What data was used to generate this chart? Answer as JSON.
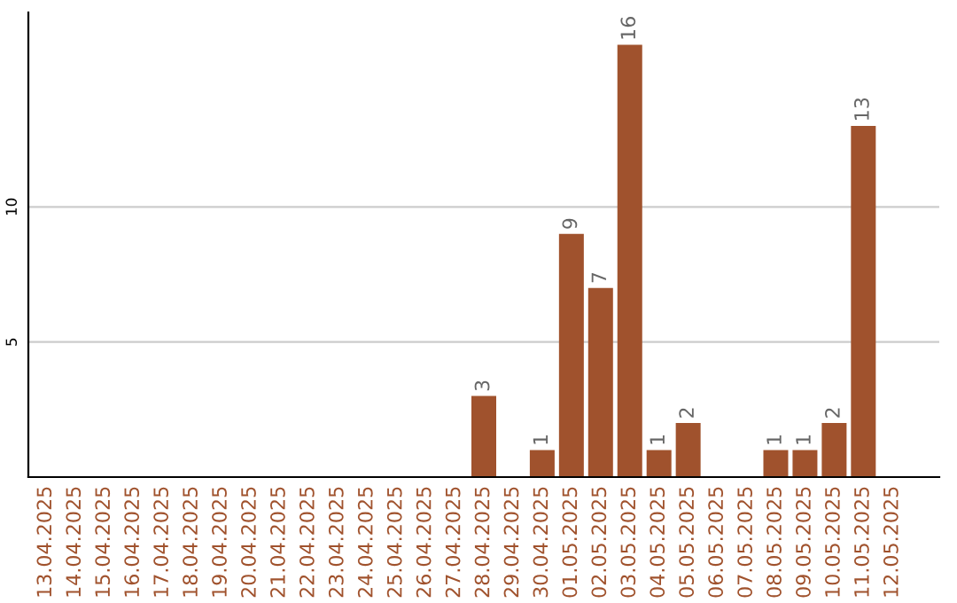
{
  "chart_data": {
    "type": "bar",
    "categories": [
      "13.04.2025",
      "14.04.2025",
      "15.04.2025",
      "16.04.2025",
      "17.04.2025",
      "18.04.2025",
      "19.04.2025",
      "20.04.2025",
      "21.04.2025",
      "22.04.2025",
      "23.04.2025",
      "24.04.2025",
      "25.04.2025",
      "26.04.2025",
      "27.04.2025",
      "28.04.2025",
      "29.04.2025",
      "30.04.2025",
      "01.05.2025",
      "02.05.2025",
      "03.05.2025",
      "04.05.2025",
      "05.05.2025",
      "06.05.2025",
      "07.05.2025",
      "08.05.2025",
      "09.05.2025",
      "10.05.2025",
      "11.05.2025",
      "12.05.2025"
    ],
    "values": [
      0,
      0,
      0,
      0,
      0,
      0,
      0,
      0,
      0,
      0,
      0,
      0,
      0,
      0,
      0,
      3,
      0,
      1,
      9,
      7,
      16,
      1,
      2,
      0,
      0,
      1,
      1,
      2,
      13,
      0
    ],
    "value_labels": [
      null,
      null,
      null,
      null,
      null,
      null,
      null,
      null,
      null,
      null,
      null,
      null,
      null,
      null,
      null,
      "3",
      null,
      "1",
      "9",
      "7",
      "16",
      "1",
      "2",
      null,
      null,
      "1",
      "1",
      "2",
      "13",
      null
    ],
    "color": "#a0522d",
    "ylim": [
      0,
      17.2
    ],
    "yticks": [
      5,
      10
    ],
    "grid": "y"
  }
}
